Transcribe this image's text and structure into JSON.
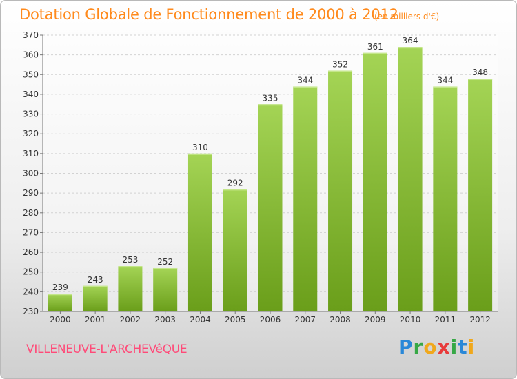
{
  "header": {
    "title": "Dotation Globale de Fonctionnement de 2000 à 2012",
    "unit": "(en milliers d'€)"
  },
  "footer": {
    "commune": "VILLENEUVE-L'ARCHEVêQUE",
    "brand_letters": [
      "P",
      "r",
      "o",
      "x",
      "i",
      "t",
      "i"
    ]
  },
  "colors": {
    "title": "#ff8a1c",
    "commune": "#ff4a78",
    "bar_light": "#a4d455",
    "bar_dark": "#6a9e1a"
  },
  "chart_data": {
    "type": "bar",
    "categories": [
      "2000",
      "2001",
      "2002",
      "2003",
      "2004",
      "2005",
      "2006",
      "2007",
      "2008",
      "2009",
      "2010",
      "2011",
      "2012"
    ],
    "values": [
      239,
      243,
      253,
      252,
      310,
      292,
      335,
      344,
      352,
      361,
      364,
      344,
      348
    ],
    "title": "Dotation Globale de Fonctionnement de 2000 à 2012",
    "ylim": [
      230,
      370
    ],
    "yticks": [
      230,
      240,
      250,
      260,
      270,
      280,
      290,
      300,
      310,
      320,
      330,
      340,
      350,
      360,
      370
    ],
    "grid": true
  }
}
